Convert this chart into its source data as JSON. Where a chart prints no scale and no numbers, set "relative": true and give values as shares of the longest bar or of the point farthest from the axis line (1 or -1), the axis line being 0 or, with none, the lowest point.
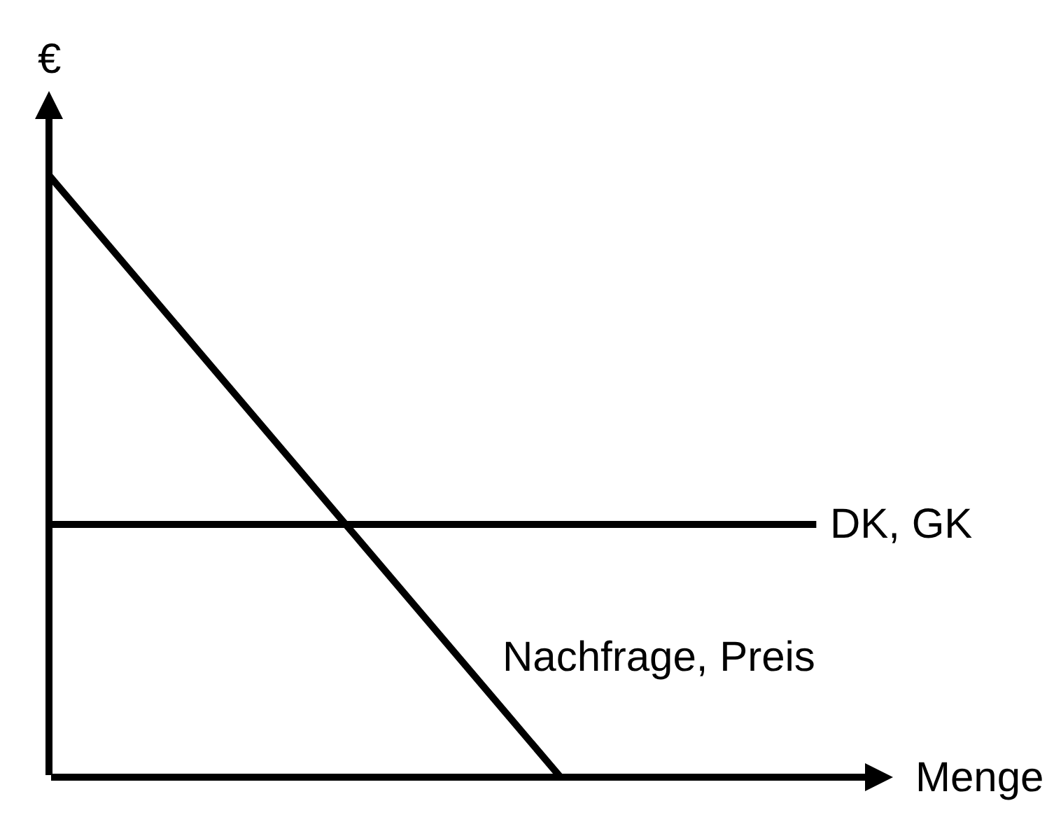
{
  "chart_data": {
    "type": "line",
    "relative": true,
    "xlabel": "Menge",
    "ylabel": "€",
    "legend": false,
    "grid": false,
    "categories": [
      null,
      null,
      null,
      null
    ],
    "series": [
      {
        "name": "Nachfrage, Preis",
        "color": "#000000",
        "values": [
          1,
          0.5,
          0,
          null
        ]
      },
      {
        "name": "DK, GK",
        "color": "#000000",
        "values": [
          0.42,
          0.42,
          0.42,
          0.42
        ]
      }
    ]
  }
}
